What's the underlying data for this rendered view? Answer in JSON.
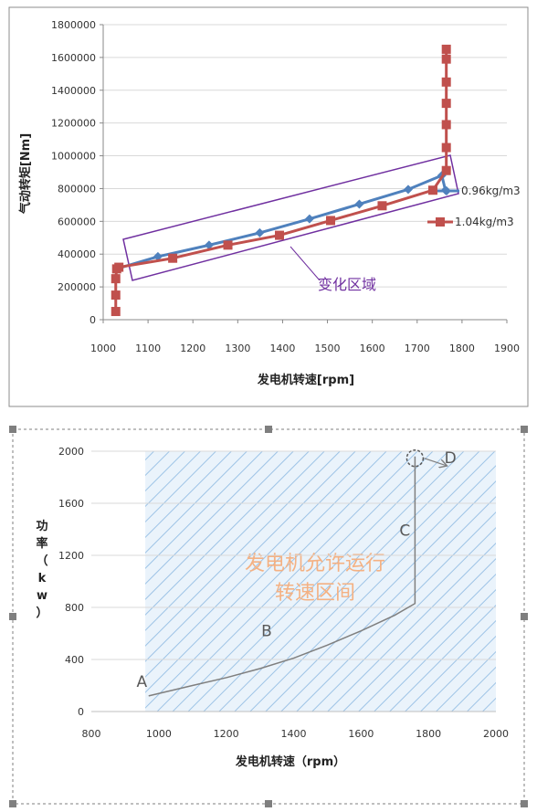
{
  "chart_data": [
    {
      "type": "line",
      "xlabel": "发电机转速[rpm]",
      "ylabel": "气动转矩[Nm]",
      "xlim": [
        1000,
        1900
      ],
      "ylim": [
        0,
        1800000
      ],
      "xticks": [
        1000,
        1100,
        1200,
        1300,
        1400,
        1500,
        1600,
        1700,
        1800,
        1900
      ],
      "yticks": [
        0,
        200000,
        400000,
        600000,
        800000,
        1000000,
        1200000,
        1400000,
        1600000,
        1800000
      ],
      "grid": "horizontal",
      "series": [
        {
          "name": "0.96kg/m3",
          "color": "#4f81bd",
          "marker": "diamond",
          "x": [
            1030,
            1122,
            1236,
            1349,
            1460,
            1571,
            1680,
            1755,
            1763
          ],
          "y": [
            310000,
            385000,
            455000,
            530000,
            615000,
            705000,
            795000,
            880000,
            790000
          ]
        },
        {
          "name": "1.04kg/m3",
          "color": "#c0504d",
          "marker": "square",
          "x": [
            1028,
            1028,
            1028,
            1030,
            1035,
            1155,
            1278,
            1393,
            1507,
            1622,
            1735,
            1765,
            1765,
            1765,
            1765,
            1765,
            1765,
            1765
          ],
          "y": [
            50000,
            150000,
            250000,
            310000,
            320000,
            375000,
            455000,
            515000,
            605000,
            695000,
            790000,
            910000,
            1050000,
            1190000,
            1320000,
            1450000,
            1590000,
            1650000
          ]
        }
      ],
      "annotations": [
        {
          "text": "变化区域",
          "shape": "rotated-rectangle",
          "color": "#7030a0"
        }
      ]
    },
    {
      "type": "area",
      "xlabel": "发电机转速（rpm）",
      "ylabel": "功率（kw）",
      "xlim": [
        800,
        2000
      ],
      "ylim": [
        0,
        2000
      ],
      "xticks": [
        800,
        1000,
        1200,
        1400,
        1600,
        1800,
        2000
      ],
      "yticks": [
        0,
        400,
        800,
        1200,
        1600,
        2000
      ],
      "grid": "horizontal",
      "region": {
        "x": [
          960,
          2000
        ],
        "y": [
          0,
          2000
        ],
        "fill": "hatched",
        "color": "#9dc3e6"
      },
      "region_label": [
        "发电机允许运行",
        "转速区间"
      ],
      "series": [
        {
          "name": "",
          "color": "#7f7f7f",
          "x": [
            970,
            1100,
            1200,
            1300,
            1400,
            1500,
            1600,
            1700,
            1760,
            1760
          ],
          "y": [
            120,
            200,
            260,
            330,
            410,
            510,
            620,
            740,
            830,
            1960
          ]
        }
      ],
      "point_labels": [
        {
          "text": "A",
          "x": 950,
          "y": 190
        },
        {
          "text": "B",
          "x": 1320,
          "y": 580
        },
        {
          "text": "C",
          "x": 1730,
          "y": 1350
        },
        {
          "text": "D",
          "x": 1865,
          "y": 1910
        }
      ]
    }
  ]
}
